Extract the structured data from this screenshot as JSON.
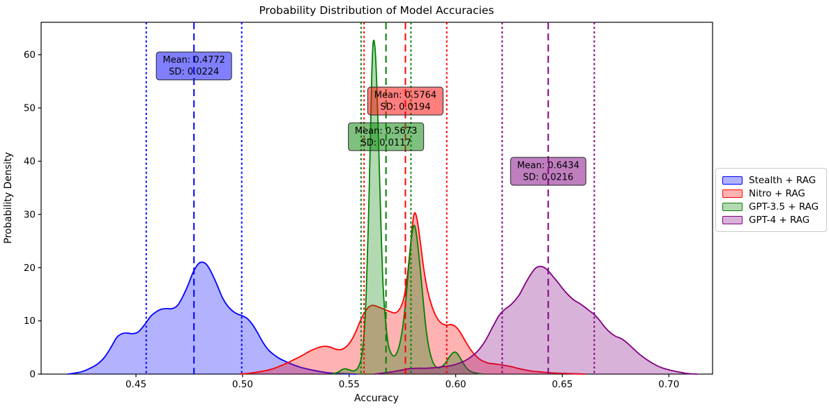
{
  "chart_data": {
    "type": "area",
    "title": "Probability Distribution of Model Accuracies",
    "xlabel": "Accuracy",
    "ylabel": "Probability Density",
    "xlim": [
      0.4055,
      0.7205
    ],
    "ylim": [
      0,
      66.1
    ],
    "xticks": [
      0.45,
      0.5,
      0.55,
      0.6,
      0.65,
      0.7
    ],
    "yticks": [
      0,
      10,
      20,
      30,
      40,
      50,
      60
    ],
    "grid": false,
    "legend_position": "right-outside",
    "series": [
      {
        "name": "Stealth + RAG",
        "color": "#0000ff",
        "fill": "rgba(0,0,255,0.3)",
        "box_fill": "rgba(0,0,255,0.5)",
        "mean": 0.4772,
        "sd": 0.0224,
        "annotation_line1": "Mean: 0.4772",
        "annotation_line2": "SD: 0.0224",
        "annotation_y": 57.9,
        "points": [
          [
            0.418,
            0
          ],
          [
            0.4215,
            0.2
          ],
          [
            0.425,
            0.5
          ],
          [
            0.4285,
            1.1
          ],
          [
            0.432,
            1.9
          ],
          [
            0.4355,
            3.3
          ],
          [
            0.4385,
            5.2
          ],
          [
            0.441,
            6.9
          ],
          [
            0.4435,
            7.6
          ],
          [
            0.446,
            7.7
          ],
          [
            0.4485,
            7.6
          ],
          [
            0.451,
            7.9
          ],
          [
            0.4535,
            9.0
          ],
          [
            0.4548,
            9.7
          ],
          [
            0.457,
            10.9
          ],
          [
            0.4595,
            11.7
          ],
          [
            0.462,
            12.2
          ],
          [
            0.4645,
            12.3
          ],
          [
            0.467,
            12.3
          ],
          [
            0.4695,
            12.9
          ],
          [
            0.472,
            14.6
          ],
          [
            0.4745,
            16.8
          ],
          [
            0.477,
            19.3
          ],
          [
            0.4795,
            20.8
          ],
          [
            0.4815,
            21.0
          ],
          [
            0.4835,
            20.4
          ],
          [
            0.4855,
            19.0
          ],
          [
            0.488,
            16.8
          ],
          [
            0.4905,
            14.4
          ],
          [
            0.493,
            12.8
          ],
          [
            0.4955,
            11.8
          ],
          [
            0.4975,
            11.3
          ],
          [
            0.4996,
            11.0
          ],
          [
            0.502,
            10.5
          ],
          [
            0.5045,
            9.4
          ],
          [
            0.507,
            7.8
          ],
          [
            0.5095,
            6.0
          ],
          [
            0.512,
            4.6
          ],
          [
            0.5145,
            3.7
          ],
          [
            0.517,
            3.0
          ],
          [
            0.52,
            2.4
          ],
          [
            0.5235,
            1.8
          ],
          [
            0.527,
            1.3
          ],
          [
            0.531,
            0.9
          ],
          [
            0.536,
            0.5
          ],
          [
            0.541,
            0.2
          ],
          [
            0.547,
            0.1
          ],
          [
            0.5535,
            0
          ]
        ]
      },
      {
        "name": "Nitro + RAG",
        "color": "#ff0000",
        "fill": "rgba(255,0,0,0.3)",
        "box_fill": "rgba(255,0,0,0.5)",
        "mean": 0.5764,
        "sd": 0.0194,
        "annotation_line1": "Mean: 0.5764",
        "annotation_line2": "SD: 0.0194",
        "annotation_y": 51.3,
        "points": [
          [
            0.499,
            0
          ],
          [
            0.504,
            0.2
          ],
          [
            0.509,
            0.5
          ],
          [
            0.5135,
            0.9
          ],
          [
            0.5175,
            1.5
          ],
          [
            0.521,
            2.1
          ],
          [
            0.5245,
            2.8
          ],
          [
            0.528,
            3.5
          ],
          [
            0.5315,
            4.3
          ],
          [
            0.535,
            4.9
          ],
          [
            0.538,
            5.2
          ],
          [
            0.541,
            5.1
          ],
          [
            0.5435,
            4.7
          ],
          [
            0.546,
            4.6
          ],
          [
            0.5485,
            5.1
          ],
          [
            0.551,
            6.3
          ],
          [
            0.5535,
            8.3
          ],
          [
            0.556,
            10.7
          ],
          [
            0.5585,
            12.3
          ],
          [
            0.5605,
            12.9
          ],
          [
            0.5625,
            12.8
          ],
          [
            0.565,
            12.4
          ],
          [
            0.5675,
            12.0
          ],
          [
            0.5695,
            11.7
          ],
          [
            0.5715,
            11.5
          ],
          [
            0.5735,
            12.1
          ],
          [
            0.5755,
            14.0
          ],
          [
            0.577,
            17.5
          ],
          [
            0.5785,
            23.0
          ],
          [
            0.5797,
            28.0
          ],
          [
            0.5807,
            30.3
          ],
          [
            0.582,
            28.8
          ],
          [
            0.5835,
            24.5
          ],
          [
            0.585,
            19.8
          ],
          [
            0.5868,
            15.7
          ],
          [
            0.5888,
            12.8
          ],
          [
            0.591,
            10.7
          ],
          [
            0.5932,
            9.6
          ],
          [
            0.5955,
            9.2
          ],
          [
            0.5978,
            9.3
          ],
          [
            0.6,
            8.9
          ],
          [
            0.6022,
            7.8
          ],
          [
            0.6045,
            6.2
          ],
          [
            0.607,
            4.6
          ],
          [
            0.6095,
            3.4
          ],
          [
            0.612,
            2.6
          ],
          [
            0.615,
            2.1
          ],
          [
            0.6185,
            1.9
          ],
          [
            0.622,
            1.7
          ],
          [
            0.626,
            1.4
          ],
          [
            0.63,
            1.0
          ],
          [
            0.635,
            0.6
          ],
          [
            0.64,
            0.4
          ],
          [
            0.646,
            0.2
          ],
          [
            0.653,
            0.1
          ],
          [
            0.661,
            0
          ]
        ]
      },
      {
        "name": "GPT-3.5 + RAG",
        "color": "#008000",
        "fill": "rgba(0,128,0,0.3)",
        "box_fill": "rgba(0,128,0,0.5)",
        "mean": 0.5673,
        "sd": 0.0117,
        "annotation_line1": "Mean: 0.5673",
        "annotation_line2": "SD: 0.0117",
        "annotation_y": 44.6,
        "points": [
          [
            0.542,
            0
          ],
          [
            0.5445,
            0.3
          ],
          [
            0.5465,
            0.8
          ],
          [
            0.548,
            1.0
          ],
          [
            0.55,
            0.8
          ],
          [
            0.552,
            0.6
          ],
          [
            0.554,
            1.1
          ],
          [
            0.5557,
            3.0
          ],
          [
            0.557,
            7.5
          ],
          [
            0.558,
            15.0
          ],
          [
            0.559,
            28.0
          ],
          [
            0.56,
            45.0
          ],
          [
            0.5606,
            56.0
          ],
          [
            0.5613,
            62.4
          ],
          [
            0.5622,
            61.0
          ],
          [
            0.563,
            54.0
          ],
          [
            0.564,
            41.0
          ],
          [
            0.565,
            27.0
          ],
          [
            0.566,
            16.0
          ],
          [
            0.5672,
            9.5
          ],
          [
            0.5684,
            5.5
          ],
          [
            0.5697,
            3.9
          ],
          [
            0.571,
            3.4
          ],
          [
            0.5724,
            4.0
          ],
          [
            0.5738,
            5.8
          ],
          [
            0.5752,
            9.0
          ],
          [
            0.5765,
            13.5
          ],
          [
            0.5778,
            19.5
          ],
          [
            0.579,
            24.8
          ],
          [
            0.58,
            27.5
          ],
          [
            0.5809,
            27.7
          ],
          [
            0.582,
            25.0
          ],
          [
            0.5833,
            20.0
          ],
          [
            0.5847,
            14.0
          ],
          [
            0.586,
            8.8
          ],
          [
            0.5874,
            5.0
          ],
          [
            0.5888,
            2.8
          ],
          [
            0.59,
            1.7
          ],
          [
            0.5915,
            1.2
          ],
          [
            0.593,
            1.3
          ],
          [
            0.595,
            2.0
          ],
          [
            0.597,
            3.2
          ],
          [
            0.5987,
            4.0
          ],
          [
            0.6,
            4.1
          ],
          [
            0.6014,
            3.5
          ],
          [
            0.603,
            2.4
          ],
          [
            0.605,
            1.2
          ],
          [
            0.607,
            0.5
          ],
          [
            0.6095,
            0.2
          ],
          [
            0.6125,
            0
          ]
        ]
      },
      {
        "name": "GPT-4 + RAG",
        "color": "#800080",
        "fill": "rgba(128,0,128,0.3)",
        "box_fill": "rgba(128,0,128,0.5)",
        "mean": 0.6434,
        "sd": 0.0216,
        "annotation_line1": "Mean: 0.6434",
        "annotation_line2": "SD: 0.0216",
        "annotation_y": 38.1,
        "points": [
          [
            0.562,
            0
          ],
          [
            0.566,
            0.2
          ],
          [
            0.57,
            0.4
          ],
          [
            0.574,
            0.7
          ],
          [
            0.578,
            1.0
          ],
          [
            0.582,
            1.1
          ],
          [
            0.586,
            1.1
          ],
          [
            0.59,
            1.2
          ],
          [
            0.594,
            1.4
          ],
          [
            0.598,
            1.6
          ],
          [
            0.602,
            2.1
          ],
          [
            0.606,
            2.9
          ],
          [
            0.61,
            4.2
          ],
          [
            0.6135,
            6.0
          ],
          [
            0.617,
            8.6
          ],
          [
            0.62,
            10.8
          ],
          [
            0.6218,
            11.7
          ],
          [
            0.6235,
            12.3
          ],
          [
            0.6255,
            12.9
          ],
          [
            0.6275,
            13.7
          ],
          [
            0.63,
            15.0
          ],
          [
            0.6325,
            16.9
          ],
          [
            0.635,
            18.6
          ],
          [
            0.6372,
            19.8
          ],
          [
            0.639,
            20.2
          ],
          [
            0.6412,
            20.1
          ],
          [
            0.6434,
            19.4
          ],
          [
            0.6455,
            18.4
          ],
          [
            0.648,
            17.2
          ],
          [
            0.6505,
            15.9
          ],
          [
            0.653,
            14.8
          ],
          [
            0.6555,
            13.9
          ],
          [
            0.658,
            13.3
          ],
          [
            0.6605,
            12.6
          ],
          [
            0.663,
            11.8
          ],
          [
            0.665,
            11.2
          ],
          [
            0.6675,
            10.1
          ],
          [
            0.67,
            8.8
          ],
          [
            0.6725,
            7.8
          ],
          [
            0.675,
            7.1
          ],
          [
            0.6775,
            6.7
          ],
          [
            0.68,
            6.0
          ],
          [
            0.683,
            4.9
          ],
          [
            0.686,
            3.8
          ],
          [
            0.689,
            2.9
          ],
          [
            0.6925,
            2.0
          ],
          [
            0.696,
            1.3
          ],
          [
            0.7,
            0.8
          ],
          [
            0.7045,
            0.4
          ],
          [
            0.709,
            0.1
          ],
          [
            0.7135,
            0
          ]
        ]
      }
    ],
    "styles": {
      "mean_line_dash": "10 6",
      "sd_line_dash": "3 3.5",
      "annotation_edge": "#333333",
      "spine_color": "#000000"
    }
  }
}
